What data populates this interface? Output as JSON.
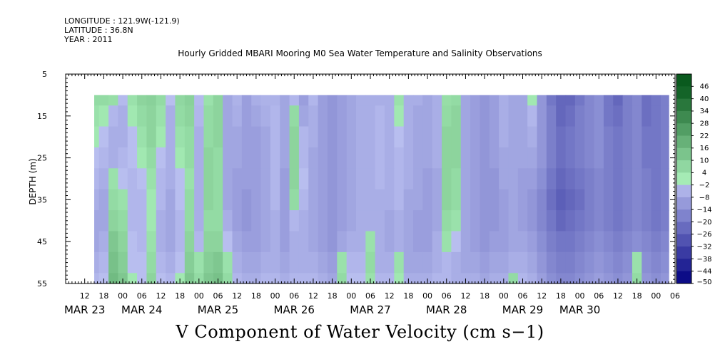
{
  "header": {
    "longitude": "LONGITUDE : 121.9W(-121.9)",
    "latitude": "LATITUDE : 36.8N",
    "year": "YEAR : 2011"
  },
  "colors": {
    "positive_low": "#a8eeb8",
    "positive_high": "#0a5a1e",
    "negative_low": "#c0c6f4",
    "negative_high": "#000080",
    "background": "#ffffff"
  },
  "chart_data": {
    "type": "heatmap",
    "title": "Hourly Gridded MBARI Mooring M0 Sea Water Temperature and Salinity Observations",
    "xlabel": "V Component of Water Velocity (cm s−1)",
    "ylabel": "DEPTH (m)",
    "ylim": [
      5,
      55
    ],
    "y_inverted": true,
    "y_ticks": [
      5,
      15,
      25,
      35,
      45,
      55
    ],
    "x_start_hour": 6,
    "x_end_hour": 198,
    "x_hour_tick_labels": [
      "12",
      "18",
      "00",
      "06",
      "12",
      "18",
      "00",
      "06",
      "12",
      "18",
      "00",
      "06",
      "12",
      "18",
      "00",
      "06",
      "12",
      "18",
      "00",
      "06",
      "12",
      "18",
      "00",
      "06",
      "12",
      "18",
      "00",
      "06",
      "12",
      "18",
      "00",
      "06"
    ],
    "day_labels": [
      {
        "label": "MAR 23",
        "hour": 12
      },
      {
        "label": "MAR 24",
        "hour": 30
      },
      {
        "label": "MAR 25",
        "hour": 54
      },
      {
        "label": "MAR 26",
        "hour": 78
      },
      {
        "label": "MAR 27",
        "hour": 102
      },
      {
        "label": "MAR 28",
        "hour": 126
      },
      {
        "label": "MAR 29",
        "hour": 150
      },
      {
        "label": "MAR 30",
        "hour": 168
      }
    ],
    "data_depth_range": [
      10,
      55
    ],
    "data_hour_range": [
      15,
      196
    ],
    "grid": false,
    "colorbar": {
      "levels": [
        -50,
        -44,
        -38,
        -32,
        -26,
        -20,
        -14,
        -8,
        -2,
        4,
        10,
        16,
        22,
        28,
        34,
        40,
        46
      ],
      "labels": [
        "46",
        "40",
        "34",
        "28",
        "22",
        "16",
        "10",
        "4",
        "−2",
        "−8",
        "−14",
        "−20",
        "−26",
        "−32",
        "−38",
        "−44",
        "−50"
      ],
      "position": "right"
    },
    "depths": [
      10,
      15,
      20,
      25,
      30,
      35,
      40,
      45,
      50,
      55
    ],
    "time_hours": [
      15,
      18,
      21,
      24,
      27,
      30,
      33,
      36,
      39,
      42,
      45,
      48,
      51,
      54,
      57,
      60,
      63,
      66,
      69,
      72,
      75,
      78,
      81,
      84,
      87,
      90,
      93,
      96,
      99,
      102,
      105,
      108,
      111,
      114,
      117,
      120,
      123,
      126,
      129,
      132,
      135,
      138,
      141,
      144,
      147,
      150,
      153,
      156,
      159,
      162,
      165,
      168,
      171,
      174,
      177,
      180,
      183,
      186,
      189,
      192,
      195
    ],
    "values_by_depth": [
      [
        6,
        6,
        5,
        -3,
        4,
        8,
        9,
        6,
        -2,
        7,
        9,
        -3,
        4,
        8,
        -8,
        -5,
        -10,
        -6,
        -5,
        -5,
        -8,
        -4,
        -10,
        -4,
        -10,
        -12,
        -10,
        -8,
        -6,
        -6,
        -6,
        -6,
        4,
        -6,
        -6,
        -8,
        -6,
        5,
        6,
        -8,
        -10,
        -12,
        -10,
        -6,
        -8,
        -8,
        2,
        -12,
        -20,
        -24,
        -24,
        -20,
        -16,
        -14,
        -20,
        -24,
        -18,
        -16,
        -22,
        -20,
        -18
      ],
      [
        4,
        2,
        -4,
        -6,
        2,
        6,
        8,
        4,
        -6,
        6,
        8,
        -4,
        6,
        8,
        -8,
        -6,
        -10,
        -8,
        -6,
        -4,
        -8,
        6,
        -8,
        -6,
        -10,
        -12,
        -10,
        -8,
        -6,
        -6,
        -4,
        -6,
        2,
        -6,
        -8,
        -8,
        -6,
        6,
        8,
        -8,
        -10,
        -12,
        -10,
        -6,
        -8,
        -8,
        -4,
        -12,
        -18,
        -24,
        -22,
        -18,
        -16,
        -14,
        -20,
        -22,
        -18,
        -16,
        -22,
        -20,
        -18
      ],
      [
        2,
        -2,
        -6,
        -6,
        -2,
        4,
        8,
        2,
        -6,
        4,
        6,
        -6,
        6,
        8,
        -8,
        -8,
        -10,
        -10,
        -8,
        -4,
        -8,
        8,
        -4,
        -6,
        -10,
        -12,
        -10,
        -8,
        -6,
        -6,
        -4,
        -6,
        -2,
        -6,
        -8,
        -8,
        -6,
        8,
        8,
        -8,
        -10,
        -12,
        -10,
        -6,
        -8,
        -8,
        -6,
        -12,
        -18,
        -22,
        -20,
        -18,
        -16,
        -14,
        -18,
        -20,
        -18,
        -16,
        -20,
        -20,
        -18
      ],
      [
        -2,
        -4,
        -6,
        -4,
        -2,
        2,
        6,
        -2,
        -6,
        2,
        6,
        -6,
        8,
        6,
        -8,
        -8,
        -10,
        -10,
        -8,
        -4,
        -8,
        8,
        -4,
        -8,
        -10,
        -12,
        -10,
        -8,
        -6,
        -6,
        -4,
        -6,
        -4,
        -6,
        -8,
        -8,
        -6,
        8,
        8,
        -8,
        -10,
        -12,
        -10,
        -8,
        -8,
        -8,
        -8,
        -12,
        -18,
        -22,
        -20,
        -18,
        -16,
        -14,
        -18,
        -20,
        -18,
        -16,
        -20,
        -20,
        -18
      ],
      [
        -4,
        -6,
        4,
        -2,
        -4,
        -2,
        4,
        -4,
        -6,
        -2,
        4,
        -6,
        8,
        6,
        -8,
        -10,
        -10,
        -10,
        -8,
        -4,
        -10,
        8,
        -2,
        -8,
        -10,
        -12,
        -10,
        -8,
        -6,
        -6,
        -4,
        -6,
        -4,
        -6,
        -8,
        -10,
        -8,
        8,
        6,
        -8,
        -10,
        -12,
        -12,
        -8,
        -8,
        -10,
        -10,
        -14,
        -20,
        -24,
        -22,
        -20,
        -18,
        -16,
        -18,
        -20,
        -18,
        -16,
        -18,
        -20,
        -18
      ],
      [
        -6,
        -8,
        6,
        4,
        -4,
        -4,
        2,
        -4,
        -8,
        -2,
        6,
        -6,
        8,
        6,
        -8,
        -10,
        -12,
        -10,
        -8,
        -4,
        -10,
        6,
        -4,
        -8,
        -10,
        -12,
        -10,
        -8,
        -6,
        -6,
        -6,
        -6,
        -4,
        -8,
        -8,
        -10,
        -8,
        8,
        6,
        -8,
        -10,
        -12,
        -12,
        -10,
        -8,
        -10,
        -12,
        -16,
        -22,
        -26,
        -24,
        -22,
        -18,
        -16,
        -18,
        -20,
        -18,
        -16,
        -18,
        -20,
        -18
      ],
      [
        -8,
        -8,
        8,
        6,
        -4,
        -4,
        2,
        -6,
        -8,
        -4,
        6,
        -6,
        6,
        6,
        -6,
        -10,
        -12,
        -10,
        -8,
        -6,
        -10,
        -4,
        -6,
        -8,
        -10,
        -12,
        -10,
        -8,
        -6,
        -6,
        -6,
        -8,
        -6,
        -8,
        -10,
        -10,
        -8,
        6,
        4,
        -8,
        -10,
        -12,
        -12,
        -10,
        -8,
        -10,
        -12,
        -16,
        -20,
        -24,
        -22,
        -20,
        -18,
        -16,
        -18,
        -20,
        -18,
        -16,
        -18,
        -20,
        -18
      ],
      [
        -8,
        -6,
        12,
        8,
        -2,
        -4,
        4,
        -6,
        -8,
        -4,
        8,
        -4,
        8,
        8,
        -2,
        -8,
        -10,
        -10,
        -8,
        -6,
        -10,
        -6,
        -6,
        -8,
        -10,
        -12,
        -8,
        -6,
        -6,
        4,
        -6,
        -8,
        -6,
        -8,
        -10,
        -10,
        -6,
        4,
        -2,
        -8,
        -10,
        -12,
        -10,
        -10,
        -8,
        -8,
        -10,
        -14,
        -18,
        -20,
        -20,
        -18,
        -16,
        -14,
        -16,
        -18,
        -16,
        -14,
        -16,
        -18,
        -16
      ],
      [
        -6,
        -4,
        14,
        10,
        -2,
        -2,
        6,
        -4,
        -6,
        -2,
        10,
        4,
        10,
        12,
        4,
        -6,
        -8,
        -8,
        -6,
        -6,
        -8,
        -6,
        -6,
        -6,
        -8,
        -10,
        4,
        -4,
        -4,
        6,
        -6,
        -6,
        4,
        -8,
        -8,
        -8,
        -6,
        -4,
        -6,
        -8,
        -8,
        -10,
        -8,
        -8,
        -6,
        -6,
        -8,
        -12,
        -16,
        -18,
        -18,
        -16,
        -14,
        -12,
        -14,
        -16,
        -14,
        4,
        -14,
        -16,
        -14
      ],
      [
        -4,
        -2,
        16,
        12,
        2,
        -2,
        8,
        -2,
        -4,
        2,
        12,
        6,
        12,
        14,
        6,
        -4,
        -6,
        -6,
        -4,
        -4,
        -6,
        -4,
        -4,
        -4,
        -6,
        -8,
        6,
        -2,
        -2,
        4,
        -4,
        -4,
        2,
        -6,
        -6,
        -6,
        -4,
        -4,
        -6,
        -6,
        -6,
        -8,
        -6,
        -6,
        6,
        -4,
        -6,
        -10,
        -14,
        -16,
        -16,
        -14,
        -12,
        -10,
        -12,
        -14,
        -12,
        6,
        -12,
        -14,
        -12
      ]
    ]
  }
}
